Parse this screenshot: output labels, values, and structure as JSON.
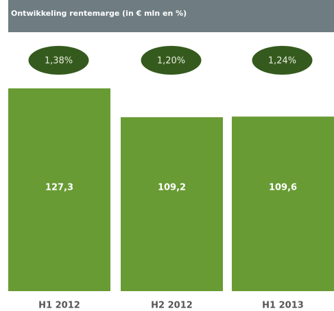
{
  "chart_data": {
    "type": "bar",
    "title": "Ontwikkeling rentemarge (in € mln en %)",
    "categories": [
      "H1 2012",
      "H2 2012",
      "H1 2013"
    ],
    "values": [
      127.3,
      109.2,
      109.6
    ],
    "value_labels": [
      "127,3",
      "109,2",
      "109,6"
    ],
    "color": "#689b34",
    "margins": {
      "values": [
        1.38,
        1.2,
        1.24
      ],
      "value_labels": [
        "1,38%",
        "1,20%",
        "1,24%"
      ],
      "color": "#355a1e"
    }
  }
}
